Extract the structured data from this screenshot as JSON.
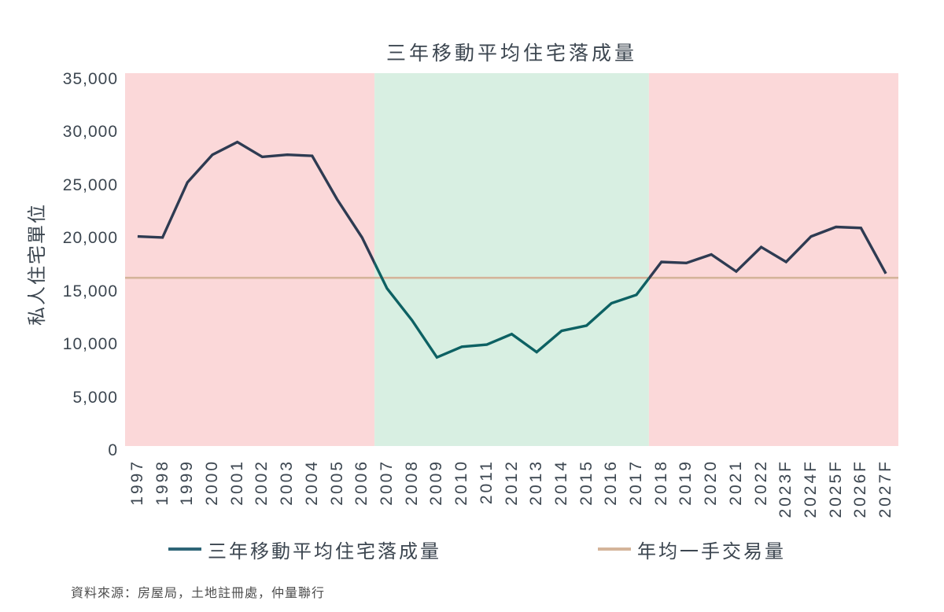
{
  "chart_data": {
    "type": "line",
    "title": "三年移動平均住宅落成量",
    "ylabel": "私人住宅單位",
    "xlabel": "",
    "ylim": [
      0,
      35000
    ],
    "grid": false,
    "legend_position": "bottom",
    "yticks": [
      {
        "value": 0,
        "label": "0"
      },
      {
        "value": 5000,
        "label": "5,000"
      },
      {
        "value": 10000,
        "label": "10,000"
      },
      {
        "value": 15000,
        "label": "15,000"
      },
      {
        "value": 20000,
        "label": "20,000"
      },
      {
        "value": 25000,
        "label": "25,000"
      },
      {
        "value": 30000,
        "label": "30,000"
      },
      {
        "value": 35000,
        "label": "35,000"
      }
    ],
    "categories": [
      "1997",
      "1998",
      "1999",
      "2000",
      "2001",
      "2002",
      "2003",
      "2004",
      "2005",
      "2006",
      "2007",
      "2008",
      "2009",
      "2010",
      "2011",
      "2012",
      "2013",
      "2014",
      "2015",
      "2016",
      "2017",
      "2018",
      "2019",
      "2020",
      "2021",
      "2022",
      "2023F",
      "2024F",
      "2025F",
      "2026F",
      "2027F"
    ],
    "series": [
      {
        "name": "三年移動平均住宅落成量",
        "type": "line",
        "legend_color": "#2e6577",
        "colors_by_band": [
          "#2e3b52",
          "#0d6163",
          "#2e3b52"
        ],
        "values": [
          20200,
          20100,
          25300,
          27900,
          29100,
          27700,
          27900,
          27800,
          23700,
          20100,
          15300,
          12300,
          8800,
          9800,
          10000,
          11000,
          9300,
          11300,
          11800,
          13900,
          14700,
          17800,
          17700,
          18500,
          16900,
          19200,
          17800,
          20200,
          21100,
          21000,
          16700
        ]
      },
      {
        "name": "年均一手交易量",
        "type": "hline",
        "value": 16300,
        "color": "#d4b49a"
      }
    ],
    "bands": [
      {
        "from": "1997",
        "to": "2006",
        "color": "#fbd8d9"
      },
      {
        "from": "2007",
        "to": "2017",
        "color": "#d8efe2"
      },
      {
        "from": "2018",
        "to": "2027F",
        "color": "#fbd8d9"
      }
    ],
    "source": "資料來源：房屋局，土地註冊處，仲量聯行"
  }
}
